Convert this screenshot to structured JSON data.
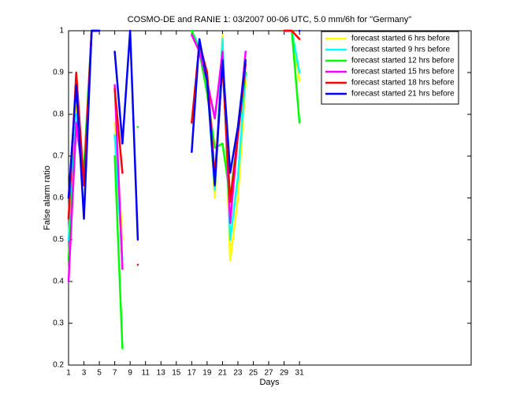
{
  "chart_data": {
    "type": "line",
    "title": "COSMO-DE and RANIE 1: 03/2007 00-06 UTC, 5.0 mm/6h for \"Germany\"",
    "x_label": "Days",
    "y_label": "False alarm ratio",
    "x": [
      1,
      2,
      3,
      4,
      5,
      6,
      7,
      8,
      9,
      10,
      11,
      12,
      13,
      14,
      15,
      16,
      17,
      18,
      19,
      20,
      21,
      22,
      23,
      24,
      25,
      26,
      27,
      28,
      29,
      30,
      31
    ],
    "series": [
      {
        "name": "forecast started 6 hrs before",
        "color": "#ffff00",
        "values": [
          0.55,
          0.82,
          0.65,
          1,
          1,
          null,
          0.78,
          0.5,
          null,
          null,
          null,
          null,
          null,
          null,
          null,
          null,
          1,
          0.96,
          0.9,
          0.6,
          0.99,
          0.45,
          0.6,
          0.88,
          null,
          null,
          null,
          null,
          1,
          1,
          0.88
        ]
      },
      {
        "name": "forecast started 9 hrs before",
        "color": "#00ffff",
        "values": [
          0.5,
          0.8,
          0.65,
          1,
          1,
          null,
          0.75,
          0.45,
          null,
          null,
          null,
          null,
          null,
          null,
          null,
          null,
          1,
          0.96,
          0.88,
          0.62,
          0.98,
          0.5,
          0.65,
          0.9,
          null,
          null,
          null,
          null,
          1,
          1,
          0.9
        ]
      },
      {
        "name": "forecast started 12 hrs before",
        "color": "#00ff00",
        "values": [
          0.45,
          0.77,
          0.67,
          1,
          1,
          null,
          0.7,
          0.24,
          null,
          0.77,
          null,
          null,
          null,
          null,
          null,
          null,
          1,
          0.95,
          0.85,
          0.72,
          0.73,
          0.6,
          0.75,
          0.9,
          null,
          null,
          null,
          null,
          1,
          1,
          0.78
        ]
      },
      {
        "name": "forecast started 15 hrs before",
        "color": "#ff00ff",
        "values": [
          0.4,
          0.78,
          0.63,
          1,
          1,
          null,
          0.87,
          0.43,
          null,
          null,
          null,
          null,
          null,
          null,
          null,
          null,
          0.99,
          0.95,
          0.88,
          0.79,
          0.95,
          0.54,
          0.75,
          0.95,
          null,
          null,
          null,
          null,
          1,
          1,
          null
        ]
      },
      {
        "name": "forecast started 18 hrs before",
        "color": "#ff0000",
        "values": [
          0.55,
          0.9,
          0.63,
          1,
          1,
          null,
          0.86,
          0.66,
          null,
          0.44,
          null,
          null,
          null,
          null,
          null,
          null,
          0.78,
          0.97,
          0.9,
          0.65,
          0.92,
          0.59,
          0.75,
          0.92,
          null,
          null,
          null,
          null,
          1,
          1,
          0.98
        ]
      },
      {
        "name": "forecast started 21 hrs before",
        "color": "#0000ff",
        "values": [
          0.6,
          0.87,
          0.55,
          1,
          1,
          null,
          0.95,
          0.73,
          1,
          0.5,
          null,
          null,
          null,
          null,
          null,
          null,
          0.71,
          0.98,
          0.88,
          0.63,
          0.93,
          0.66,
          0.77,
          0.93,
          null,
          null,
          null,
          null,
          null,
          null,
          1
        ]
      }
    ],
    "xlim": [
      1,
      53.3
    ],
    "xticks": [
      1,
      3,
      5,
      7,
      9,
      11,
      13,
      15,
      17,
      19,
      21,
      23,
      25,
      27,
      29,
      31
    ],
    "ylim": [
      0.2,
      1
    ],
    "yticks": [
      0.2,
      0.3,
      0.4,
      0.5,
      0.6,
      0.7,
      0.8,
      0.9,
      1
    ],
    "legend": "top-right",
    "grid": false
  }
}
